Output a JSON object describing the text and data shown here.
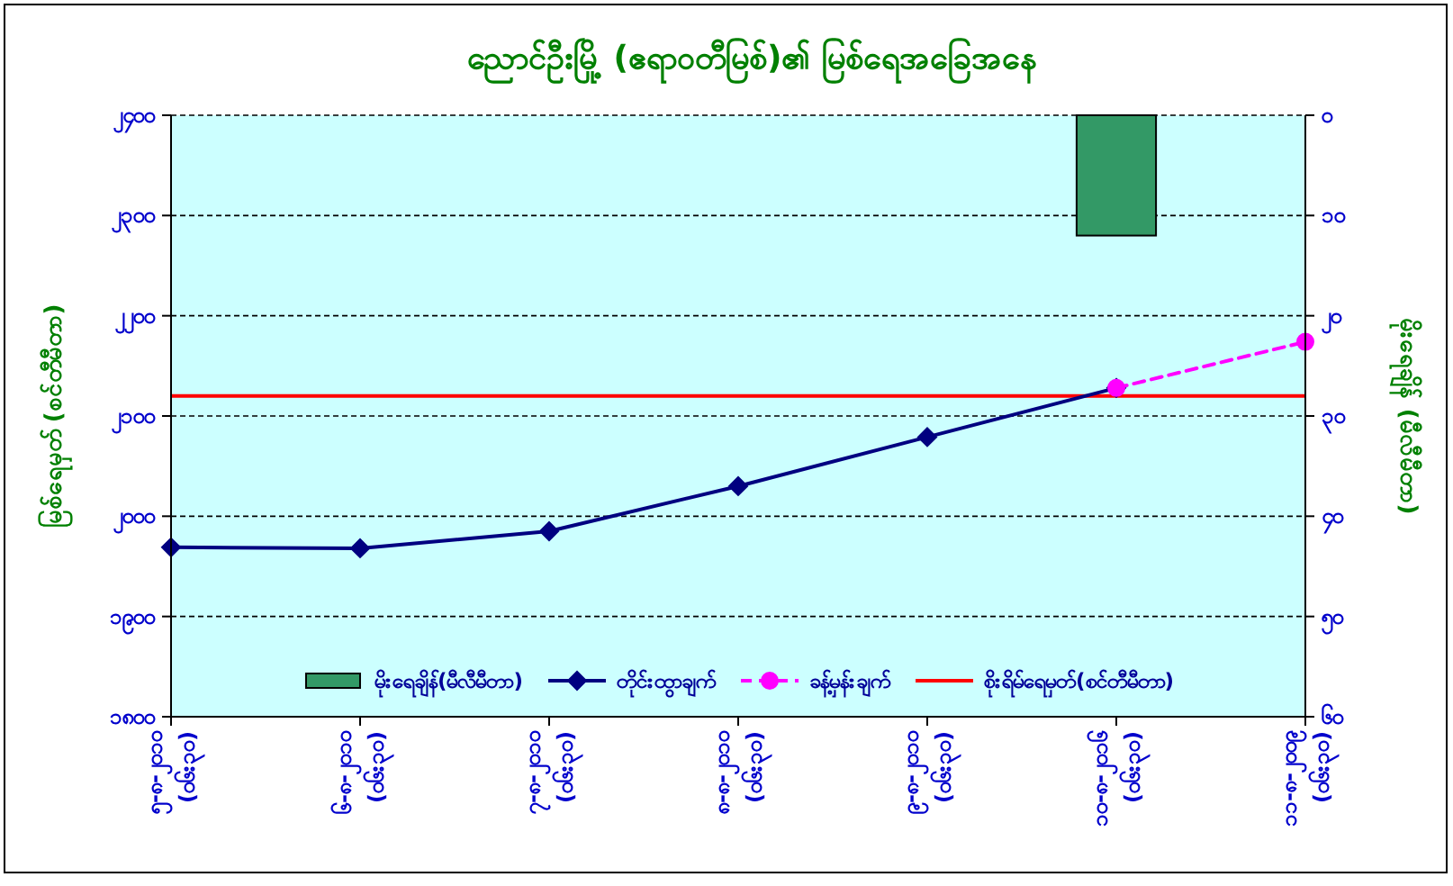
{
  "chart_data": {
    "type": "line",
    "title": "ညောင်ဦးမြို့ (ဧရာဝတီမြစ်)၏ မြစ်ရေအခြေအနေ",
    "ylabel": "မြစ်ရေမှတ် (စင်တီမီတာ)",
    "y2label": "မိုးရေချိန် (မီလီမီတာ)",
    "categories": [
      "၅-၈-၂၀၁၀ (၀၆း၃၀)",
      "၆-၈-၂၀၁၀ (၀၆း၃၀)",
      "၇-၈-၂၀၁၀ (၀၆း၃၀)",
      "၈-၈-၂၀၁၀ (၀၆း၃၀)",
      "၉-၈-၂၀၁၀ (၀၆း၃၀)",
      "၁၀-၈-၂၀၁၆ (၀၆း၃၀)",
      "၁၁-၈-၂၀၀၉ (၀၆း၃၀)"
    ],
    "series": [
      {
        "name": "မိုးရေချိန်(မီလီမီတာ)",
        "type": "bar",
        "axis": "y2",
        "color": "#339966",
        "values": [
          null,
          null,
          null,
          null,
          null,
          12,
          null
        ]
      },
      {
        "name": "တိုင်းထွာချက်",
        "color": "#000080",
        "marker": "diamond",
        "line_style": "solid",
        "values": [
          1969,
          1968,
          1985,
          2030,
          2079,
          2128,
          null
        ]
      },
      {
        "name": "ခန့်မှန်းချက်",
        "color": "#ff00ff",
        "marker": "circle",
        "line_style": "dashed",
        "values": [
          null,
          null,
          null,
          null,
          null,
          2128,
          2174
        ]
      }
    ],
    "ref_lines": [
      {
        "axis": "y",
        "value": 2120,
        "label": "စိုးရိမ်ရေမှတ်(စင်တီမီတာ)",
        "color": "#ff0000"
      }
    ],
    "ylim": [
      1800,
      2400
    ],
    "yticks": [
      {
        "value": 1800,
        "label": "၁၈၀၀"
      },
      {
        "value": 1900,
        "label": "၁၉၀၀"
      },
      {
        "value": 2000,
        "label": "၂၀၀၀"
      },
      {
        "value": 2100,
        "label": "၂၁၀၀"
      },
      {
        "value": 2200,
        "label": "၂၂၀၀"
      },
      {
        "value": 2300,
        "label": "၂၃၀၀"
      },
      {
        "value": 2400,
        "label": "၂၄၀၀"
      }
    ],
    "y2lim": [
      60,
      0
    ],
    "y2ticks": [
      {
        "value": 0,
        "label": "၀"
      },
      {
        "value": 10,
        "label": "၁၀"
      },
      {
        "value": 20,
        "label": "၂၀"
      },
      {
        "value": 30,
        "label": "၃၀"
      },
      {
        "value": 40,
        "label": "၄၀"
      },
      {
        "value": 50,
        "label": "၅၀"
      },
      {
        "value": 60,
        "label": "၆၀"
      }
    ],
    "grid": "y",
    "legend": "bottom"
  }
}
